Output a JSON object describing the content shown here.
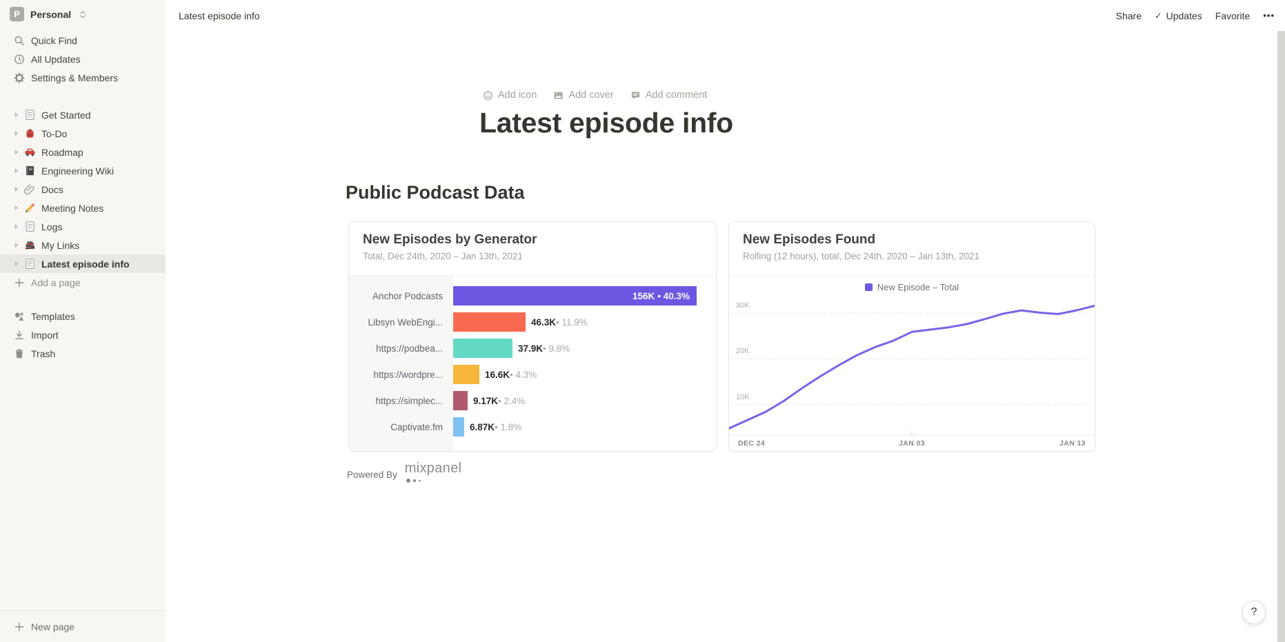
{
  "workspace": {
    "initial": "P",
    "name": "Personal"
  },
  "sidebar": {
    "top_items": [
      {
        "icon": "search-icon",
        "label": "Quick Find"
      },
      {
        "icon": "clock-icon",
        "label": "All Updates"
      },
      {
        "icon": "gear-icon",
        "label": "Settings & Members"
      }
    ],
    "pages": [
      {
        "icon": "page-icon",
        "label": "Get Started",
        "selected": false
      },
      {
        "icon": "backpack-icon",
        "label": "To-Do",
        "selected": false
      },
      {
        "icon": "car-icon",
        "label": "Roadmap",
        "selected": false
      },
      {
        "icon": "notebook-icon",
        "label": "Engineering Wiki",
        "selected": false
      },
      {
        "icon": "paperclip-icon",
        "label": "Docs",
        "selected": false
      },
      {
        "icon": "pencil-icon",
        "label": "Meeting Notes",
        "selected": false
      },
      {
        "icon": "page-icon",
        "label": "Logs",
        "selected": false
      },
      {
        "icon": "books-icon",
        "label": "My Links",
        "selected": false
      },
      {
        "icon": "page-icon",
        "label": "Latest episode info",
        "selected": true
      }
    ],
    "add_page_label": "Add a page",
    "secondary_items": [
      {
        "icon": "templates-icon",
        "label": "Templates"
      },
      {
        "icon": "import-icon",
        "label": "Import"
      },
      {
        "icon": "trash-icon",
        "label": "Trash"
      }
    ],
    "new_page_label": "New page"
  },
  "topbar": {
    "breadcrumb": "Latest episode info",
    "share": "Share",
    "updates": "Updates",
    "favorite": "Favorite"
  },
  "page": {
    "controls": {
      "add_icon": "Add icon",
      "add_cover": "Add cover",
      "add_comment": "Add comment"
    },
    "title": "Latest episode info",
    "section_heading": "Public Podcast Data",
    "powered_by": "Powered By",
    "brand": "mixpanel",
    "help": "?"
  },
  "chart_data": [
    {
      "type": "bar",
      "orientation": "horizontal",
      "title": "New Episodes by Generator",
      "subtitle": "Total, Dec 24th, 2020 – Jan 13th, 2021",
      "categories": [
        "Anchor Podcasts",
        "Libsyn WebEngi...",
        "https://podbea...",
        "https://wordpre...",
        "https://simplec...",
        "Captivate.fm"
      ],
      "values": [
        156000,
        46300,
        37900,
        16600,
        9170,
        6870
      ],
      "value_labels": [
        "156K",
        "46.3K",
        "37.9K",
        "16.6K",
        "9.17K",
        "6.87K"
      ],
      "percent_labels": [
        "40.3%",
        "11.9%",
        "9.8%",
        "4.3%",
        "2.4%",
        "1.8%"
      ],
      "colors": [
        "#6B57E2",
        "#F86A4F",
        "#63D9C4",
        "#F6B73C",
        "#B05A6D",
        "#7EC1F1"
      ],
      "grid": "off",
      "legend_position": "none"
    },
    {
      "type": "line",
      "title": "New Episodes Found",
      "subtitle": "Rolling (12 hours), total, Dec 24th, 2020 – Jan 13th, 2021",
      "legend": [
        "New Episode – Total"
      ],
      "line_color": "#7A62E9",
      "legend_color": "#6B5AE7",
      "x": [
        "Dec 24",
        "Dec 25",
        "Dec 26",
        "Dec 27",
        "Dec 28",
        "Dec 29",
        "Dec 30",
        "Dec 31",
        "Jan 01",
        "Jan 02",
        "Jan 03",
        "Jan 04",
        "Jan 05",
        "Jan 06",
        "Jan 07",
        "Jan 08",
        "Jan 09",
        "Jan 10",
        "Jan 11",
        "Jan 12",
        "Jan 13"
      ],
      "values_k": [
        4.8,
        6.6,
        8.4,
        10.8,
        13.6,
        16.2,
        18.6,
        20.8,
        22.6,
        24.0,
        25.9,
        26.4,
        26.9,
        27.6,
        28.7,
        29.9,
        30.6,
        30.1,
        29.8,
        30.6,
        31.6
      ],
      "yticks": [
        "10K",
        "20K",
        "30K"
      ],
      "xticks": [
        "DEC 24",
        "JAN 03",
        "JAN 13"
      ],
      "ylim_k": [
        0,
        35
      ],
      "grid": "dashed-horizontal",
      "legend_position": "top-center"
    }
  ]
}
